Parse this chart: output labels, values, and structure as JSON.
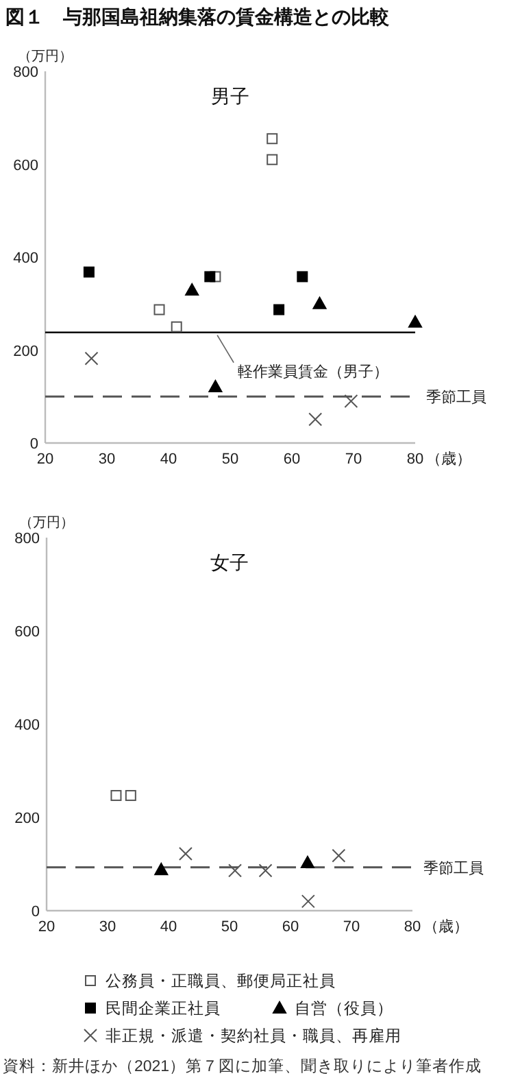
{
  "chart_data": [
    {
      "type": "scatter",
      "title": "男子",
      "ylabel": "（万円）",
      "xlabel": "（歳）",
      "xlim": [
        20,
        80
      ],
      "ylim": [
        0,
        800
      ],
      "xticks": [
        20,
        30,
        40,
        50,
        60,
        70,
        80
      ],
      "yticks": [
        0,
        200,
        400,
        600,
        800
      ],
      "grid": false,
      "legend": false,
      "annotations": [
        "図１　与那国島祖納集落の賃金構造との比較"
      ],
      "ref_lines": [
        {
          "axis": "y",
          "value": 238,
          "label": "軽作業員賃金（男子）",
          "color": "#000000",
          "line_style": "solid"
        },
        {
          "axis": "y",
          "value": 100,
          "label": "季節工員",
          "color": "#555555",
          "line_style": "dashed"
        }
      ],
      "series": [
        {
          "color": "#ffffff",
          "marker": "square",
          "x": [
            56.8,
            56.8,
            38.5,
            41.3,
            47.6
          ],
          "values": [
            655,
            610,
            287,
            250,
            358
          ]
        },
        {
          "color": "#000000",
          "marker": "square",
          "x": [
            27.1,
            46.7,
            57.9,
            61.7
          ],
          "values": [
            368,
            358,
            287,
            358
          ]
        },
        {
          "color": "#000000",
          "marker": "triangle",
          "x": [
            43.8,
            64.5,
            80,
            47.6
          ],
          "values": [
            329,
            300,
            260,
            121
          ]
        },
        {
          "color": "#555555",
          "marker": "cross",
          "x": [
            27.5,
            69.6,
            63.8
          ],
          "values": [
            182,
            90,
            51
          ]
        }
      ]
    },
    {
      "type": "scatter",
      "title": "女子",
      "ylabel": "（万円）",
      "xlabel": "（歳）",
      "xlim": [
        20,
        80
      ],
      "ylim": [
        0,
        800
      ],
      "xticks": [
        20,
        30,
        40,
        50,
        60,
        70,
        80
      ],
      "yticks": [
        0,
        200,
        400,
        600,
        800
      ],
      "grid": false,
      "legend": "bottom",
      "annotations": [
        "資料：新井ほか（2021）第７図に加筆、聞き取りにより筆者作成"
      ],
      "ref_lines": [
        {
          "axis": "y",
          "value": 93,
          "label": "季節工員",
          "color": "#555555",
          "line_style": "dashed"
        }
      ],
      "series": [
        {
          "name": "公務員・正職員、郵便局正社員",
          "color": "#ffffff",
          "marker": "square",
          "x": [
            31.4,
            33.8
          ],
          "values": [
            247,
            247
          ]
        },
        {
          "name": "民間企業正社員",
          "color": "#000000",
          "marker": "square"
        },
        {
          "name": "自営（役員）",
          "color": "#000000",
          "marker": "triangle",
          "x": [
            38.8,
            62.8
          ],
          "values": [
            88,
            103
          ]
        },
        {
          "name": "非正規・派遣・契約社員・職員、再雇用",
          "color": "#555555",
          "marker": "cross",
          "x": [
            42.8,
            50.9,
            55.9,
            67.9,
            62.9
          ],
          "values": [
            122,
            86,
            86,
            118,
            20
          ]
        }
      ]
    }
  ]
}
